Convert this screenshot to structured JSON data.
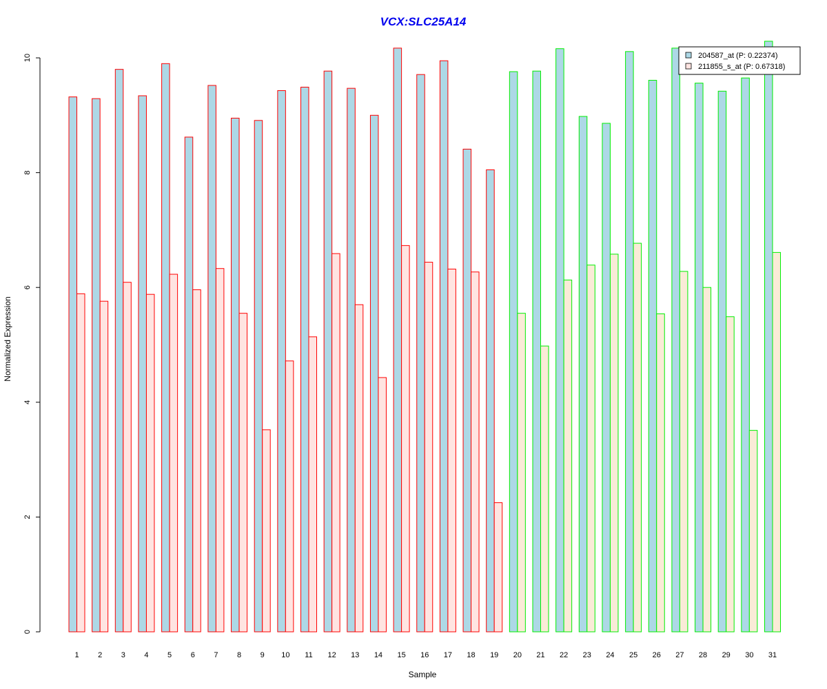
{
  "chart_data": {
    "type": "bar",
    "title": "VCX:SLC25A14",
    "xlabel": "Sample",
    "ylabel": "Normalized Expression",
    "ylim": [
      0,
      10.5
    ],
    "yticks": [
      0,
      2,
      4,
      6,
      8,
      10
    ],
    "categories": [
      "1",
      "2",
      "3",
      "4",
      "5",
      "6",
      "7",
      "8",
      "9",
      "10",
      "11",
      "12",
      "13",
      "14",
      "15",
      "16",
      "17",
      "18",
      "19",
      "20",
      "21",
      "22",
      "23",
      "24",
      "25",
      "26",
      "27",
      "28",
      "29",
      "30",
      "31"
    ],
    "group_border_colors": [
      "#ff0000",
      "#ff0000",
      "#ff0000",
      "#ff0000",
      "#ff0000",
      "#ff0000",
      "#ff0000",
      "#ff0000",
      "#ff0000",
      "#ff0000",
      "#ff0000",
      "#ff0000",
      "#ff0000",
      "#ff0000",
      "#ff0000",
      "#ff0000",
      "#ff0000",
      "#ff0000",
      "#ff0000",
      "#00ee00",
      "#00ee00",
      "#00ee00",
      "#00ee00",
      "#00ee00",
      "#00ee00",
      "#00ee00",
      "#00ee00",
      "#00ee00",
      "#00ee00",
      "#00ee00",
      "#00ee00"
    ],
    "series": [
      {
        "name": "204587_at (P: 0.22374)",
        "fill": "#add8e6",
        "values": [
          9.32,
          9.29,
          9.8,
          9.34,
          9.9,
          8.62,
          9.52,
          8.95,
          8.91,
          9.43,
          9.49,
          9.77,
          9.47,
          9.0,
          10.17,
          9.71,
          9.95,
          8.41,
          8.05,
          9.76,
          9.77,
          10.16,
          8.98,
          8.86,
          10.11,
          9.61,
          10.17,
          9.56,
          9.42,
          9.65,
          10.29
        ]
      },
      {
        "name": "211855_s_at (P: 0.67318)",
        "fill_red_group": "#ffe4e1",
        "fill_green_group": "#faebd7",
        "values": [
          5.89,
          5.76,
          6.09,
          5.88,
          6.23,
          5.96,
          6.33,
          5.55,
          3.52,
          4.72,
          5.14,
          6.59,
          5.7,
          4.43,
          6.73,
          6.44,
          6.32,
          6.27,
          2.25,
          5.55,
          4.98,
          6.13,
          6.39,
          6.58,
          6.77,
          5.54,
          6.28,
          6.0,
          5.49,
          3.51,
          6.61
        ]
      }
    ],
    "legend_position": "top-right",
    "grid": false
  }
}
